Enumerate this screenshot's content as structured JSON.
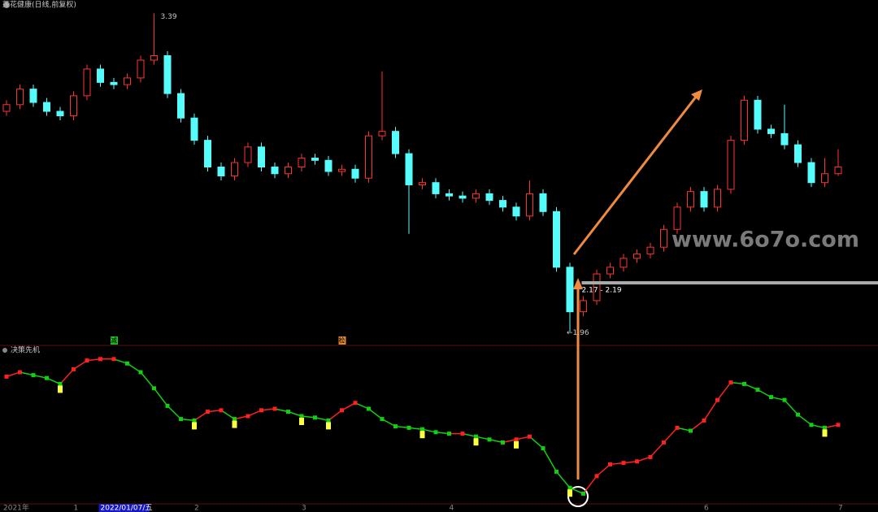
{
  "header": {
    "title": "莲花健康(日线,前复权)",
    "watermark": "www.6o7o.com"
  },
  "chart_data": [
    {
      "type": "candlestick",
      "up_color": "#ff3232",
      "down_color": "#54fcfc",
      "ylim": [
        1.91,
        3.45
      ],
      "open": [
        2.95,
        2.98,
        3.05,
        2.99,
        2.95,
        2.93,
        3.02,
        3.14,
        3.08,
        3.07,
        3.1,
        3.18,
        3.2,
        3.03,
        2.92,
        2.82,
        2.7,
        2.66,
        2.72,
        2.79,
        2.7,
        2.67,
        2.7,
        2.74,
        2.73,
        2.68,
        2.69,
        2.65,
        2.84,
        2.86,
        2.76,
        2.62,
        2.63,
        2.58,
        2.57,
        2.56,
        2.58,
        2.55,
        2.52,
        2.48,
        2.58,
        2.5,
        2.25,
        2.05,
        2.1,
        2.22,
        2.25,
        2.29,
        2.31,
        2.34,
        2.42,
        2.52,
        2.59,
        2.52,
        2.6,
        2.82,
        3.0,
        2.87,
        2.85,
        2.8,
        2.72,
        2.63,
        2.67
      ],
      "high": [
        3.0,
        3.07,
        3.07,
        3.01,
        2.97,
        3.04,
        3.16,
        3.16,
        3.1,
        3.12,
        3.2,
        3.39,
        3.22,
        3.05,
        2.94,
        2.84,
        2.72,
        2.74,
        2.81,
        2.81,
        2.72,
        2.72,
        2.76,
        2.76,
        2.75,
        2.71,
        2.71,
        2.86,
        3.13,
        2.88,
        2.78,
        2.65,
        2.65,
        2.6,
        2.59,
        2.6,
        2.6,
        2.57,
        2.54,
        2.64,
        2.6,
        2.52,
        2.27,
        2.12,
        2.24,
        2.27,
        2.31,
        2.33,
        2.36,
        2.44,
        2.54,
        2.61,
        2.61,
        2.62,
        2.84,
        3.02,
        3.02,
        2.89,
        2.98,
        2.82,
        2.74,
        2.74,
        2.78
      ],
      "low": [
        2.93,
        2.96,
        2.97,
        2.93,
        2.91,
        2.91,
        3.0,
        3.06,
        3.05,
        3.05,
        3.08,
        3.16,
        3.01,
        2.9,
        2.8,
        2.68,
        2.64,
        2.64,
        2.7,
        2.68,
        2.65,
        2.65,
        2.68,
        2.71,
        2.66,
        2.66,
        2.63,
        2.63,
        2.82,
        2.74,
        2.4,
        2.6,
        2.56,
        2.55,
        2.54,
        2.54,
        2.53,
        2.5,
        2.46,
        2.46,
        2.48,
        2.23,
        1.96,
        2.03,
        2.08,
        2.2,
        2.23,
        2.27,
        2.29,
        2.32,
        2.4,
        2.5,
        2.5,
        2.5,
        2.58,
        2.8,
        2.85,
        2.83,
        2.78,
        2.7,
        2.61,
        2.61,
        2.66
      ],
      "close": [
        2.98,
        3.05,
        2.99,
        2.95,
        2.93,
        3.02,
        3.14,
        3.08,
        3.07,
        3.1,
        3.18,
        3.2,
        3.03,
        2.92,
        2.82,
        2.7,
        2.66,
        2.72,
        2.79,
        2.7,
        2.67,
        2.7,
        2.74,
        2.73,
        2.68,
        2.69,
        2.65,
        2.84,
        2.86,
        2.76,
        2.62,
        2.63,
        2.58,
        2.57,
        2.56,
        2.58,
        2.55,
        2.52,
        2.48,
        2.58,
        2.5,
        2.25,
        2.05,
        2.1,
        2.22,
        2.25,
        2.29,
        2.31,
        2.34,
        2.42,
        2.52,
        2.59,
        2.52,
        2.6,
        2.82,
        3.0,
        2.87,
        2.85,
        2.8,
        2.72,
        2.63,
        2.67,
        2.7
      ],
      "high_label": 3.39,
      "high_index": 11,
      "low_label": {
        "value": 1.96,
        "label": "←1.96"
      },
      "low_index": 42,
      "range": {
        "value": 2.18,
        "label": "2.17 - 2.19"
      },
      "range_index": 43,
      "markers": [
        {
          "text": "减",
          "index": 8,
          "color": "#20c020"
        },
        {
          "text": "检",
          "index": 25,
          "color": "#e08a30"
        }
      ]
    },
    {
      "type": "line",
      "title": "决策先机",
      "up_color": "#ff2020",
      "down_color": "#10d010",
      "signal_color": "#ffff40",
      "ylim": [
        0,
        100
      ],
      "values": [
        87,
        90,
        88,
        86,
        82,
        92,
        98,
        99,
        99,
        96,
        90,
        79,
        67,
        58,
        57,
        63,
        64,
        58,
        60,
        64,
        65,
        63,
        60,
        59,
        57,
        64,
        69,
        65,
        58,
        53,
        52,
        51,
        49,
        48,
        48,
        46,
        44,
        42,
        44,
        46,
        38,
        22,
        11,
        7,
        19,
        27,
        28,
        29,
        32,
        42,
        52,
        50,
        57,
        71,
        83,
        82,
        78,
        73,
        71,
        61,
        54,
        52,
        54
      ],
      "signals": [
        4,
        14,
        17,
        22,
        24,
        31,
        35,
        38,
        42,
        61
      ],
      "categories": [
        "2021年",
        null,
        null,
        null,
        null,
        "1",
        null,
        "2022/01/07/五",
        null,
        null,
        null,
        null,
        null,
        null,
        "2",
        null,
        null,
        null,
        null,
        null,
        null,
        null,
        "3",
        null,
        null,
        null,
        null,
        null,
        null,
        null,
        null,
        null,
        null,
        "4",
        null,
        null,
        null,
        null,
        null,
        null,
        null,
        null,
        null,
        null,
        null,
        null,
        null,
        null,
        null,
        null,
        null,
        null,
        "6",
        null,
        null,
        null,
        null,
        null,
        null,
        null,
        null,
        null,
        "7"
      ],
      "selected_index": 7
    }
  ]
}
